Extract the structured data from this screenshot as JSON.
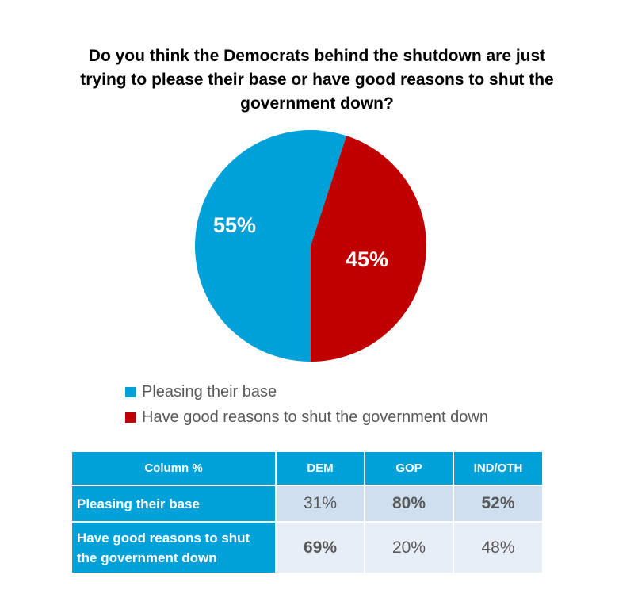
{
  "chart_data": {
    "type": "pie",
    "title": "Do you think the Democrats behind the shutdown are just trying to please their base or have good reasons to shut the government down?",
    "slices": [
      {
        "label": "Pleasing their base",
        "value": 55,
        "display": "55%",
        "color": "#00a0d8"
      },
      {
        "label": "Have good reasons to shut the government down",
        "value": 45,
        "display": "45%",
        "color": "#c00000"
      }
    ],
    "legend_position": "bottom"
  },
  "table": {
    "headers": [
      "Column %",
      "DEM",
      "GOP",
      "IND/OTH"
    ],
    "rows": [
      {
        "label": "Pleasing their base",
        "values": [
          "31%",
          "80%",
          "52%"
        ],
        "bold": [
          false,
          true,
          true
        ]
      },
      {
        "label": "Have good reasons to shut the government down",
        "values": [
          "69%",
          "20%",
          "48%"
        ],
        "bold": [
          true,
          false,
          false
        ]
      }
    ]
  }
}
